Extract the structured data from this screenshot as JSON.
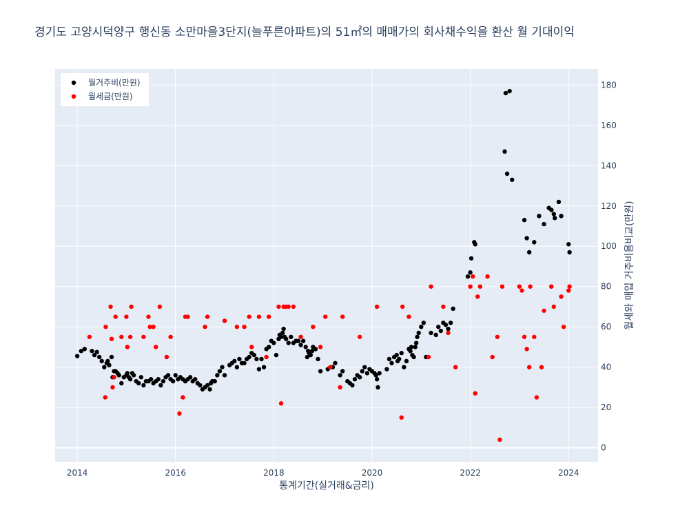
{
  "title": "경기도 고양시덕양구 행신동 소만마을3단지(늘푸른아파트)의 51㎡의 매매가의 회사채수익을 환산 월 기대이익",
  "chart_data": {
    "type": "scatter",
    "title": "경기도 고양시덕양구 행신동 소만마을3단지(늘푸른아파트)의 51㎡의 매매가의 회사채수익을 환산 월 기대이익",
    "xlabel": "통계기간(실거래&금리)",
    "ylabel": "월세와 매입 거주비용비교(만원)",
    "xlim": [
      2013.55,
      2024.6
    ],
    "ylim": [
      -7,
      188
    ],
    "x_ticks": [
      "2014",
      "2016",
      "2018",
      "2020",
      "2022",
      "2024"
    ],
    "y_ticks": [
      "0",
      "20",
      "40",
      "60",
      "80",
      "100",
      "120",
      "140",
      "160",
      "180"
    ],
    "grid": true,
    "y_axis_side": "right",
    "legend_position": "top-left",
    "series": [
      {
        "name": "월거주비(만원)",
        "color": "#000000",
        "points": [
          [
            2014.0,
            45.5
          ],
          [
            2014.08,
            48
          ],
          [
            2014.15,
            49
          ],
          [
            2014.3,
            48
          ],
          [
            2014.35,
            46
          ],
          [
            2014.4,
            47.5
          ],
          [
            2014.45,
            45
          ],
          [
            2014.5,
            43
          ],
          [
            2014.55,
            40
          ],
          [
            2014.6,
            42
          ],
          [
            2014.62,
            43
          ],
          [
            2014.65,
            41
          ],
          [
            2014.7,
            45
          ],
          [
            2014.72,
            35
          ],
          [
            2014.75,
            38
          ],
          [
            2014.78,
            38
          ],
          [
            2014.82,
            37
          ],
          [
            2014.85,
            36
          ],
          [
            2014.9,
            32
          ],
          [
            2014.95,
            35
          ],
          [
            2015.0,
            36
          ],
          [
            2015.02,
            37
          ],
          [
            2015.05,
            35
          ],
          [
            2015.08,
            34
          ],
          [
            2015.12,
            37
          ],
          [
            2015.15,
            36
          ],
          [
            2015.2,
            33
          ],
          [
            2015.25,
            32
          ],
          [
            2015.3,
            35
          ],
          [
            2015.35,
            31
          ],
          [
            2015.4,
            33
          ],
          [
            2015.45,
            33
          ],
          [
            2015.5,
            34
          ],
          [
            2015.55,
            32
          ],
          [
            2015.6,
            33
          ],
          [
            2015.65,
            34
          ],
          [
            2015.7,
            31
          ],
          [
            2015.75,
            33
          ],
          [
            2015.8,
            35
          ],
          [
            2015.85,
            36
          ],
          [
            2015.9,
            34
          ],
          [
            2015.95,
            33
          ],
          [
            2016.0,
            36
          ],
          [
            2016.05,
            34
          ],
          [
            2016.1,
            35
          ],
          [
            2016.15,
            34
          ],
          [
            2016.2,
            33
          ],
          [
            2016.25,
            34
          ],
          [
            2016.3,
            35
          ],
          [
            2016.35,
            33
          ],
          [
            2016.4,
            34
          ],
          [
            2016.45,
            32
          ],
          [
            2016.5,
            31
          ],
          [
            2016.55,
            29
          ],
          [
            2016.6,
            30
          ],
          [
            2016.65,
            31
          ],
          [
            2016.7,
            29
          ],
          [
            2016.72,
            32
          ],
          [
            2016.75,
            33
          ],
          [
            2016.8,
            33
          ],
          [
            2016.85,
            36
          ],
          [
            2016.9,
            38
          ],
          [
            2016.95,
            40
          ],
          [
            2017.0,
            36
          ],
          [
            2017.1,
            41
          ],
          [
            2017.15,
            42
          ],
          [
            2017.2,
            43
          ],
          [
            2017.25,
            40
          ],
          [
            2017.3,
            44
          ],
          [
            2017.35,
            42
          ],
          [
            2017.4,
            42
          ],
          [
            2017.45,
            44
          ],
          [
            2017.5,
            45
          ],
          [
            2017.55,
            47
          ],
          [
            2017.6,
            46
          ],
          [
            2017.65,
            44
          ],
          [
            2017.7,
            39
          ],
          [
            2017.75,
            44
          ],
          [
            2017.8,
            40
          ],
          [
            2017.85,
            49
          ],
          [
            2017.9,
            50
          ],
          [
            2017.95,
            53
          ],
          [
            2018.0,
            52
          ],
          [
            2018.05,
            46
          ],
          [
            2018.1,
            54
          ],
          [
            2018.12,
            56
          ],
          [
            2018.15,
            55
          ],
          [
            2018.18,
            57
          ],
          [
            2018.2,
            59
          ],
          [
            2018.22,
            55
          ],
          [
            2018.25,
            54
          ],
          [
            2018.3,
            52
          ],
          [
            2018.35,
            55
          ],
          [
            2018.4,
            52
          ],
          [
            2018.45,
            53
          ],
          [
            2018.5,
            53
          ],
          [
            2018.55,
            51
          ],
          [
            2018.6,
            53
          ],
          [
            2018.65,
            50
          ],
          [
            2018.68,
            45
          ],
          [
            2018.7,
            48
          ],
          [
            2018.72,
            47
          ],
          [
            2018.75,
            46
          ],
          [
            2018.78,
            48
          ],
          [
            2018.8,
            50
          ],
          [
            2018.85,
            49
          ],
          [
            2018.9,
            44
          ],
          [
            2018.95,
            38
          ],
          [
            2019.1,
            39
          ],
          [
            2019.2,
            40
          ],
          [
            2019.25,
            42
          ],
          [
            2019.35,
            36
          ],
          [
            2019.4,
            38
          ],
          [
            2019.5,
            33
          ],
          [
            2019.55,
            32
          ],
          [
            2019.6,
            31
          ],
          [
            2019.65,
            34
          ],
          [
            2019.7,
            36
          ],
          [
            2019.75,
            35
          ],
          [
            2019.8,
            38
          ],
          [
            2019.85,
            40
          ],
          [
            2019.9,
            37
          ],
          [
            2019.95,
            39
          ],
          [
            2020.0,
            38
          ],
          [
            2020.05,
            37
          ],
          [
            2020.08,
            36
          ],
          [
            2020.1,
            34
          ],
          [
            2020.12,
            30
          ],
          [
            2020.15,
            37
          ],
          [
            2020.3,
            39
          ],
          [
            2020.35,
            44
          ],
          [
            2020.4,
            42
          ],
          [
            2020.45,
            45
          ],
          [
            2020.5,
            46
          ],
          [
            2020.52,
            43
          ],
          [
            2020.55,
            44
          ],
          [
            2020.6,
            47
          ],
          [
            2020.65,
            40
          ],
          [
            2020.7,
            43
          ],
          [
            2020.75,
            49
          ],
          [
            2020.78,
            48
          ],
          [
            2020.8,
            50
          ],
          [
            2020.82,
            46
          ],
          [
            2020.85,
            45
          ],
          [
            2020.88,
            50
          ],
          [
            2020.9,
            52
          ],
          [
            2020.92,
            55
          ],
          [
            2020.95,
            57
          ],
          [
            2021.0,
            60
          ],
          [
            2021.05,
            62
          ],
          [
            2021.1,
            45
          ],
          [
            2021.2,
            57
          ],
          [
            2021.3,
            56
          ],
          [
            2021.35,
            60
          ],
          [
            2021.4,
            58
          ],
          [
            2021.45,
            62
          ],
          [
            2021.5,
            61
          ],
          [
            2021.55,
            59
          ],
          [
            2021.6,
            62
          ],
          [
            2021.65,
            69
          ],
          [
            2021.95,
            85
          ],
          [
            2022.0,
            87
          ],
          [
            2022.02,
            94
          ],
          [
            2022.08,
            102
          ],
          [
            2022.1,
            101
          ],
          [
            2022.7,
            147
          ],
          [
            2022.72,
            176
          ],
          [
            2022.75,
            136
          ],
          [
            2022.8,
            177
          ],
          [
            2022.85,
            133
          ],
          [
            2023.1,
            113
          ],
          [
            2023.15,
            104
          ],
          [
            2023.2,
            97
          ],
          [
            2023.3,
            102
          ],
          [
            2023.4,
            115
          ],
          [
            2023.5,
            111
          ],
          [
            2023.6,
            119
          ],
          [
            2023.65,
            118
          ],
          [
            2023.7,
            116
          ],
          [
            2023.72,
            114
          ],
          [
            2023.8,
            122
          ],
          [
            2023.85,
            115
          ],
          [
            2024.0,
            101
          ],
          [
            2024.02,
            97
          ]
        ]
      },
      {
        "name": "월세금(만원)",
        "color": "#ff0000",
        "points": [
          [
            2014.25,
            55
          ],
          [
            2014.57,
            25
          ],
          [
            2014.58,
            60
          ],
          [
            2014.68,
            70
          ],
          [
            2014.7,
            54
          ],
          [
            2014.72,
            30
          ],
          [
            2014.75,
            35
          ],
          [
            2014.78,
            65
          ],
          [
            2014.9,
            55
          ],
          [
            2015.0,
            65
          ],
          [
            2015.02,
            50
          ],
          [
            2015.08,
            55
          ],
          [
            2015.1,
            70
          ],
          [
            2015.35,
            55
          ],
          [
            2015.45,
            65
          ],
          [
            2015.48,
            60
          ],
          [
            2015.55,
            60
          ],
          [
            2015.6,
            50
          ],
          [
            2015.68,
            70
          ],
          [
            2015.82,
            45
          ],
          [
            2015.9,
            55
          ],
          [
            2016.08,
            17
          ],
          [
            2016.15,
            25
          ],
          [
            2016.2,
            65
          ],
          [
            2016.25,
            65
          ],
          [
            2016.6,
            60
          ],
          [
            2016.65,
            65
          ],
          [
            2017.0,
            63
          ],
          [
            2017.25,
            60
          ],
          [
            2017.4,
            60
          ],
          [
            2017.5,
            65
          ],
          [
            2017.55,
            50
          ],
          [
            2017.7,
            65
          ],
          [
            2017.85,
            45
          ],
          [
            2017.9,
            65
          ],
          [
            2018.1,
            70
          ],
          [
            2018.15,
            22
          ],
          [
            2018.2,
            70
          ],
          [
            2018.25,
            70
          ],
          [
            2018.3,
            70
          ],
          [
            2018.4,
            70
          ],
          [
            2018.55,
            55
          ],
          [
            2018.8,
            60
          ],
          [
            2018.95,
            50
          ],
          [
            2019.05,
            65
          ],
          [
            2019.15,
            40
          ],
          [
            2019.35,
            30
          ],
          [
            2019.4,
            65
          ],
          [
            2019.75,
            55
          ],
          [
            2020.1,
            70
          ],
          [
            2020.6,
            15
          ],
          [
            2020.62,
            70
          ],
          [
            2020.75,
            65
          ],
          [
            2021.15,
            45
          ],
          [
            2021.2,
            80
          ],
          [
            2021.45,
            70
          ],
          [
            2021.55,
            57
          ],
          [
            2021.7,
            40
          ],
          [
            2022.0,
            80
          ],
          [
            2022.05,
            85
          ],
          [
            2022.1,
            27
          ],
          [
            2022.15,
            75
          ],
          [
            2022.2,
            80
          ],
          [
            2022.35,
            85
          ],
          [
            2022.45,
            45
          ],
          [
            2022.55,
            55
          ],
          [
            2022.6,
            4
          ],
          [
            2022.65,
            80
          ],
          [
            2023.0,
            80
          ],
          [
            2023.05,
            78
          ],
          [
            2023.1,
            55
          ],
          [
            2023.15,
            49
          ],
          [
            2023.2,
            40
          ],
          [
            2023.22,
            80
          ],
          [
            2023.3,
            55
          ],
          [
            2023.35,
            25
          ],
          [
            2023.45,
            40
          ],
          [
            2023.5,
            68
          ],
          [
            2023.65,
            80
          ],
          [
            2023.7,
            70
          ],
          [
            2023.85,
            75
          ],
          [
            2023.9,
            60
          ],
          [
            2024.0,
            78
          ],
          [
            2024.02,
            80
          ]
        ]
      }
    ]
  }
}
